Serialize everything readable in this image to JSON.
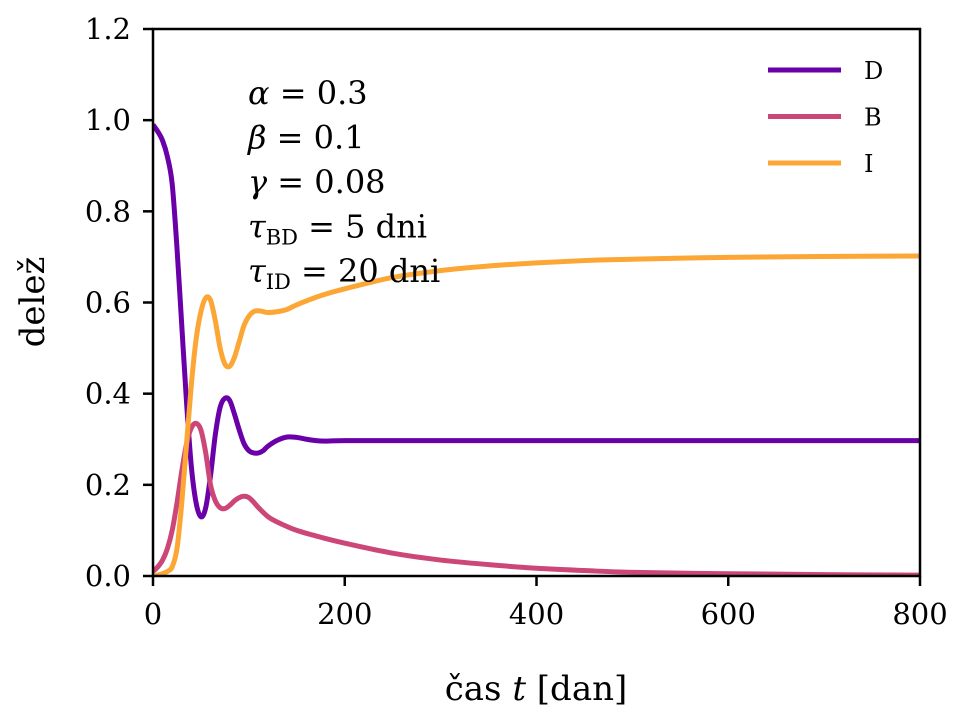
{
  "chart_data": {
    "type": "line",
    "title": "",
    "xlabel": "čas t [dan]",
    "xlabel_parts": {
      "prefix": "čas ",
      "var": "t",
      "unit": " [dan]"
    },
    "ylabel": "delež",
    "xlim": [
      0,
      800
    ],
    "ylim": [
      0.0,
      1.2
    ],
    "xticks": [
      0,
      200,
      400,
      600,
      800
    ],
    "xtick_labels": [
      "0",
      "200",
      "400",
      "600",
      "800"
    ],
    "yticks": [
      0.0,
      0.2,
      0.4,
      0.6,
      0.8,
      1.0,
      1.2
    ],
    "ytick_labels": [
      "0.0",
      "0.2",
      "0.4",
      "0.6",
      "0.8",
      "1.0",
      "1.2"
    ],
    "grid": false,
    "legend_position": "top-right",
    "annotations": [
      {
        "symbol": "α",
        "sub": "",
        "text": " = 0.3"
      },
      {
        "symbol": "β",
        "sub": "",
        "text": " = 0.1"
      },
      {
        "symbol": "γ",
        "sub": "",
        "text": " = 0.08"
      },
      {
        "symbol": "τ",
        "sub": "BD",
        "text": " = 5 dni"
      },
      {
        "symbol": "τ",
        "sub": "ID",
        "text": " = 20 dni"
      }
    ],
    "series": [
      {
        "name": "D",
        "color": "#6a00a8",
        "x": [
          0,
          5,
          10,
          15,
          20,
          25,
          30,
          35,
          40,
          45,
          50,
          55,
          60,
          65,
          70,
          75,
          80,
          85,
          90,
          95,
          100,
          105,
          110,
          115,
          120,
          130,
          140,
          150,
          160,
          170,
          180,
          200,
          250,
          300,
          400,
          500,
          600,
          700,
          800
        ],
        "y": [
          0.99,
          0.975,
          0.955,
          0.92,
          0.86,
          0.72,
          0.55,
          0.38,
          0.24,
          0.16,
          0.13,
          0.15,
          0.22,
          0.31,
          0.37,
          0.39,
          0.385,
          0.355,
          0.32,
          0.29,
          0.275,
          0.27,
          0.27,
          0.275,
          0.285,
          0.298,
          0.305,
          0.304,
          0.3,
          0.297,
          0.296,
          0.297,
          0.297,
          0.297,
          0.297,
          0.297,
          0.297,
          0.297,
          0.297
        ]
      },
      {
        "name": "B",
        "color": "#cc4778",
        "x": [
          0,
          5,
          10,
          15,
          20,
          25,
          30,
          35,
          40,
          45,
          50,
          55,
          60,
          65,
          70,
          75,
          80,
          85,
          90,
          95,
          100,
          105,
          110,
          120,
          130,
          150,
          175,
          200,
          250,
          300,
          350,
          400,
          450,
          500,
          600,
          700,
          800
        ],
        "y": [
          0.01,
          0.02,
          0.035,
          0.06,
          0.1,
          0.16,
          0.23,
          0.29,
          0.325,
          0.335,
          0.32,
          0.27,
          0.2,
          0.165,
          0.15,
          0.148,
          0.155,
          0.165,
          0.172,
          0.175,
          0.172,
          0.162,
          0.15,
          0.13,
          0.118,
          0.1,
          0.085,
          0.072,
          0.05,
          0.035,
          0.025,
          0.017,
          0.012,
          0.008,
          0.005,
          0.003,
          0.002
        ]
      },
      {
        "name": "I",
        "color": "#fca636",
        "x": [
          0,
          5,
          10,
          15,
          20,
          25,
          30,
          35,
          40,
          45,
          50,
          55,
          60,
          65,
          70,
          75,
          80,
          85,
          90,
          95,
          100,
          105,
          110,
          115,
          120,
          130,
          140,
          150,
          175,
          200,
          250,
          300,
          350,
          400,
          450,
          500,
          600,
          700,
          800
        ],
        "y": [
          0.0,
          0.002,
          0.005,
          0.01,
          0.02,
          0.06,
          0.16,
          0.29,
          0.42,
          0.52,
          0.58,
          0.61,
          0.605,
          0.56,
          0.5,
          0.465,
          0.46,
          0.48,
          0.515,
          0.55,
          0.57,
          0.58,
          0.582,
          0.58,
          0.578,
          0.58,
          0.585,
          0.595,
          0.615,
          0.63,
          0.655,
          0.67,
          0.68,
          0.687,
          0.692,
          0.695,
          0.699,
          0.701,
          0.702
        ]
      }
    ]
  }
}
